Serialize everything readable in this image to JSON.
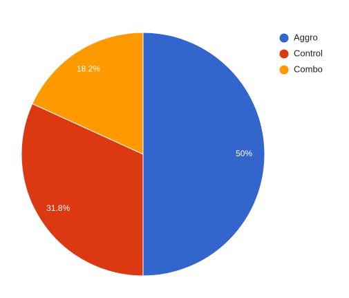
{
  "chart_data": {
    "type": "pie",
    "categories": [
      "Aggro",
      "Control",
      "Combo"
    ],
    "values": [
      50,
      31.8,
      18.2
    ],
    "value_labels": [
      "50%",
      "31.8%",
      "18.2%"
    ],
    "colors": [
      "#3366cc",
      "#dc3912",
      "#ff9900"
    ],
    "legend": "right"
  }
}
